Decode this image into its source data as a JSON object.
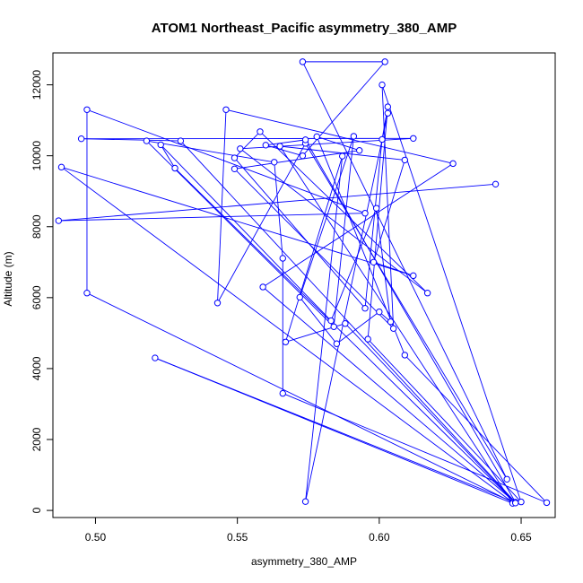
{
  "chart_data": {
    "type": "line",
    "title": "ATOM1 Northeast_Pacific asymmetry_380_AMP",
    "xlabel": "asymmetry_380_AMP",
    "ylabel": "Altitude (m)",
    "xlim": [
      0.485,
      0.662
    ],
    "ylim": [
      -200,
      12900
    ],
    "xticks": [
      "0.50",
      "0.55",
      "0.60",
      "0.65"
    ],
    "yticks": [
      "0",
      "2000",
      "4000",
      "6000",
      "8000",
      "10000",
      "12000"
    ],
    "grid": false,
    "color": "#0000ff",
    "marker": "open-circle",
    "points": [
      [
        0.641,
        9200
      ],
      [
        0.487,
        8170
      ],
      [
        0.595,
        8380
      ],
      [
        0.497,
        11300
      ],
      [
        0.497,
        6130
      ],
      [
        0.647,
        230
      ],
      [
        0.488,
        9680
      ],
      [
        0.612,
        6620
      ],
      [
        0.598,
        7000
      ],
      [
        0.609,
        9880
      ],
      [
        0.565,
        10270
      ],
      [
        0.647,
        200
      ],
      [
        0.521,
        4300
      ],
      [
        0.648,
        220
      ],
      [
        0.559,
        6300
      ],
      [
        0.626,
        9780
      ],
      [
        0.546,
        11300
      ],
      [
        0.543,
        5850
      ],
      [
        0.574,
        10350
      ],
      [
        0.645,
        880
      ],
      [
        0.573,
        12650
      ],
      [
        0.602,
        12650
      ],
      [
        0.573,
        10000
      ],
      [
        0.56,
        10300
      ],
      [
        0.574,
        10450
      ],
      [
        0.648,
        230
      ],
      [
        0.53,
        10420
      ],
      [
        0.495,
        10480
      ],
      [
        0.612,
        10490
      ],
      [
        0.551,
        10200
      ],
      [
        0.617,
        6130
      ],
      [
        0.558,
        10680
      ],
      [
        0.549,
        9940
      ],
      [
        0.595,
        5700
      ],
      [
        0.601,
        10460
      ],
      [
        0.603,
        11380
      ],
      [
        0.596,
        4830
      ],
      [
        0.65,
        240
      ],
      [
        0.601,
        12000
      ],
      [
        0.605,
        5130
      ],
      [
        0.549,
        9630
      ],
      [
        0.593,
        10150
      ],
      [
        0.578,
        10540
      ],
      [
        0.609,
        4380
      ],
      [
        0.659,
        220
      ],
      [
        0.566,
        3300
      ],
      [
        0.566,
        7110
      ],
      [
        0.563,
        9820
      ],
      [
        0.518,
        10420
      ],
      [
        0.584,
        5180
      ],
      [
        0.591,
        10550
      ],
      [
        0.572,
        6010
      ],
      [
        0.585,
        4700
      ],
      [
        0.6,
        5600
      ],
      [
        0.604,
        5320
      ],
      [
        0.599,
        8520
      ],
      [
        0.583,
        5350
      ],
      [
        0.523,
        10310
      ],
      [
        0.528,
        9650
      ],
      [
        0.648,
        210
      ],
      [
        0.588,
        5270
      ],
      [
        0.567,
        4750
      ],
      [
        0.587,
        9990
      ],
      [
        0.574,
        250
      ],
      [
        0.603,
        11200
      ]
    ]
  }
}
